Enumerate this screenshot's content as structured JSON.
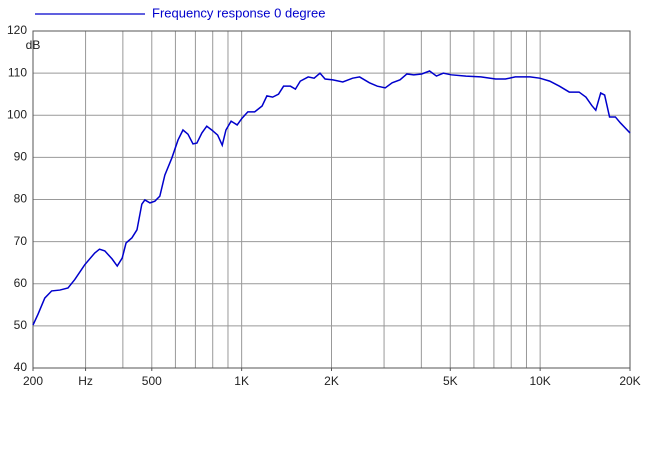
{
  "chart_data": {
    "type": "line",
    "x_scale": "log",
    "y_label": "dB",
    "xlim": [
      200,
      20000
    ],
    "ylim": [
      40,
      120
    ],
    "yticks": [
      40,
      50,
      60,
      70,
      80,
      90,
      100,
      110,
      120
    ],
    "xticks": [
      200,
      {
        "value": 300,
        "label": "Hz"
      },
      500,
      {
        "value": 1000,
        "label": "1K"
      },
      {
        "value": 2000,
        "label": "2K"
      },
      {
        "value": 5000,
        "label": "5K"
      },
      {
        "value": 10000,
        "label": "10K"
      },
      {
        "value": 20000,
        "label": "20K"
      }
    ],
    "xgrid": [
      200,
      300,
      400,
      500,
      600,
      700,
      800,
      900,
      1000,
      2000,
      3000,
      4000,
      5000,
      6000,
      7000,
      8000,
      9000,
      10000,
      20000
    ],
    "grid": true,
    "x": [
      200,
      208,
      219,
      231,
      246,
      262,
      276,
      298,
      322,
      334,
      348,
      368,
      383,
      398,
      410,
      429,
      446,
      463,
      474,
      493,
      512,
      532,
      553,
      584,
      612,
      636,
      661,
      687,
      708,
      736,
      764,
      794,
      831,
      861,
      886,
      922,
      966,
      1003,
      1049,
      1106,
      1171,
      1215,
      1270,
      1329,
      1382,
      1457,
      1514,
      1572,
      1671,
      1749,
      1830,
      1903,
      2022,
      2182,
      2354,
      2484,
      2681,
      2849,
      3028,
      3193,
      3393,
      3578,
      3773,
      4010,
      4262,
      4494,
      4738,
      5036,
      5645,
      6328,
      7094,
      7652,
      8253,
      9253,
      9980,
      10763,
      11609,
      12520,
      13503,
      14241,
      14899,
      15359,
      15955,
      16445,
      17082,
      17865,
      18563,
      20000
    ],
    "series": [
      {
        "name": "Frequency response 0 degree",
        "color": "#0000cc",
        "values": [
          50.2,
          52.8,
          56.6,
          58.3,
          58.5,
          59,
          61,
          64.5,
          67.3,
          68.2,
          67.8,
          65.9,
          64.2,
          66.1,
          69.7,
          70.9,
          72.8,
          78.9,
          79.9,
          79.2,
          79.6,
          80.8,
          85.8,
          89.9,
          94.1,
          96.5,
          95.5,
          93.2,
          93.4,
          95.8,
          97.4,
          96.5,
          95.3,
          92.9,
          96.5,
          98.6,
          97.7,
          99.3,
          100.8,
          100.8,
          102.2,
          104.6,
          104.3,
          105,
          106.9,
          106.9,
          106.2,
          108.1,
          109.1,
          108.8,
          110,
          108.6,
          108.4,
          107.9,
          108.8,
          109.1,
          107.7,
          106.9,
          106.5,
          107.7,
          108.4,
          109.8,
          109.6,
          109.8,
          110.5,
          109.3,
          110,
          109.6,
          109.3,
          109.1,
          108.6,
          108.6,
          109.1,
          109.1,
          108.8,
          108.1,
          106.9,
          105.5,
          105.5,
          104.3,
          102.3,
          101.2,
          105.3,
          104.8,
          99.6,
          99.6,
          98.2,
          95.8
        ]
      }
    ]
  }
}
